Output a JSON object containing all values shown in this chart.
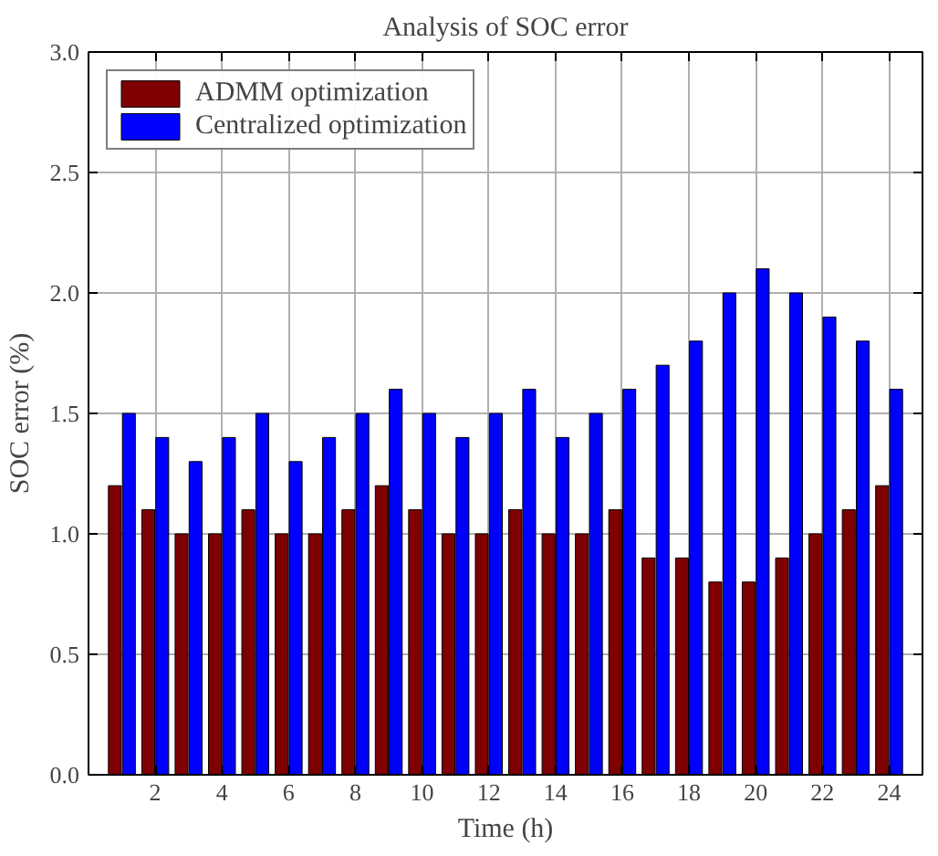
{
  "chart_data": {
    "type": "bar",
    "title": "Analysis of SOC error",
    "xlabel": "Time (h)",
    "ylabel": "SOC error (%)",
    "x": [
      1,
      2,
      3,
      4,
      5,
      6,
      7,
      8,
      9,
      10,
      11,
      12,
      13,
      14,
      15,
      16,
      17,
      18,
      19,
      20,
      21,
      22,
      23,
      24
    ],
    "series": [
      {
        "name": "ADMM optimization",
        "color": "#7f0000",
        "values": [
          1.2,
          1.1,
          1.0,
          1.0,
          1.1,
          1.0,
          1.0,
          1.1,
          1.2,
          1.1,
          1.0,
          1.0,
          1.1,
          1.0,
          1.0,
          1.1,
          0.9,
          0.9,
          0.8,
          0.8,
          0.9,
          1.0,
          1.1,
          1.2
        ]
      },
      {
        "name": "Centralized optimization",
        "color": "#0000ff",
        "values": [
          1.5,
          1.4,
          1.3,
          1.4,
          1.5,
          1.3,
          1.4,
          1.5,
          1.6,
          1.5,
          1.4,
          1.5,
          1.6,
          1.4,
          1.5,
          1.6,
          1.7,
          1.8,
          2.0,
          2.1,
          2.0,
          1.9,
          1.8,
          1.6
        ]
      }
    ],
    "xlim": [
      0,
      25
    ],
    "xticks": [
      2,
      4,
      6,
      8,
      10,
      12,
      14,
      16,
      18,
      20,
      22,
      24
    ],
    "ylim": [
      0,
      3.0
    ],
    "yticks": [
      {
        "value": 0,
        "label": "0.0"
      },
      {
        "value": 0.5,
        "label": "0.5"
      },
      {
        "value": 1.0,
        "label": "1.0"
      },
      {
        "value": 1.5,
        "label": "1.5"
      },
      {
        "value": 2.0,
        "label": "2.0"
      },
      {
        "value": 2.5,
        "label": "2.5"
      },
      {
        "value": 3.0,
        "label": "3.0"
      }
    ],
    "grid": true,
    "legend": "top left"
  }
}
